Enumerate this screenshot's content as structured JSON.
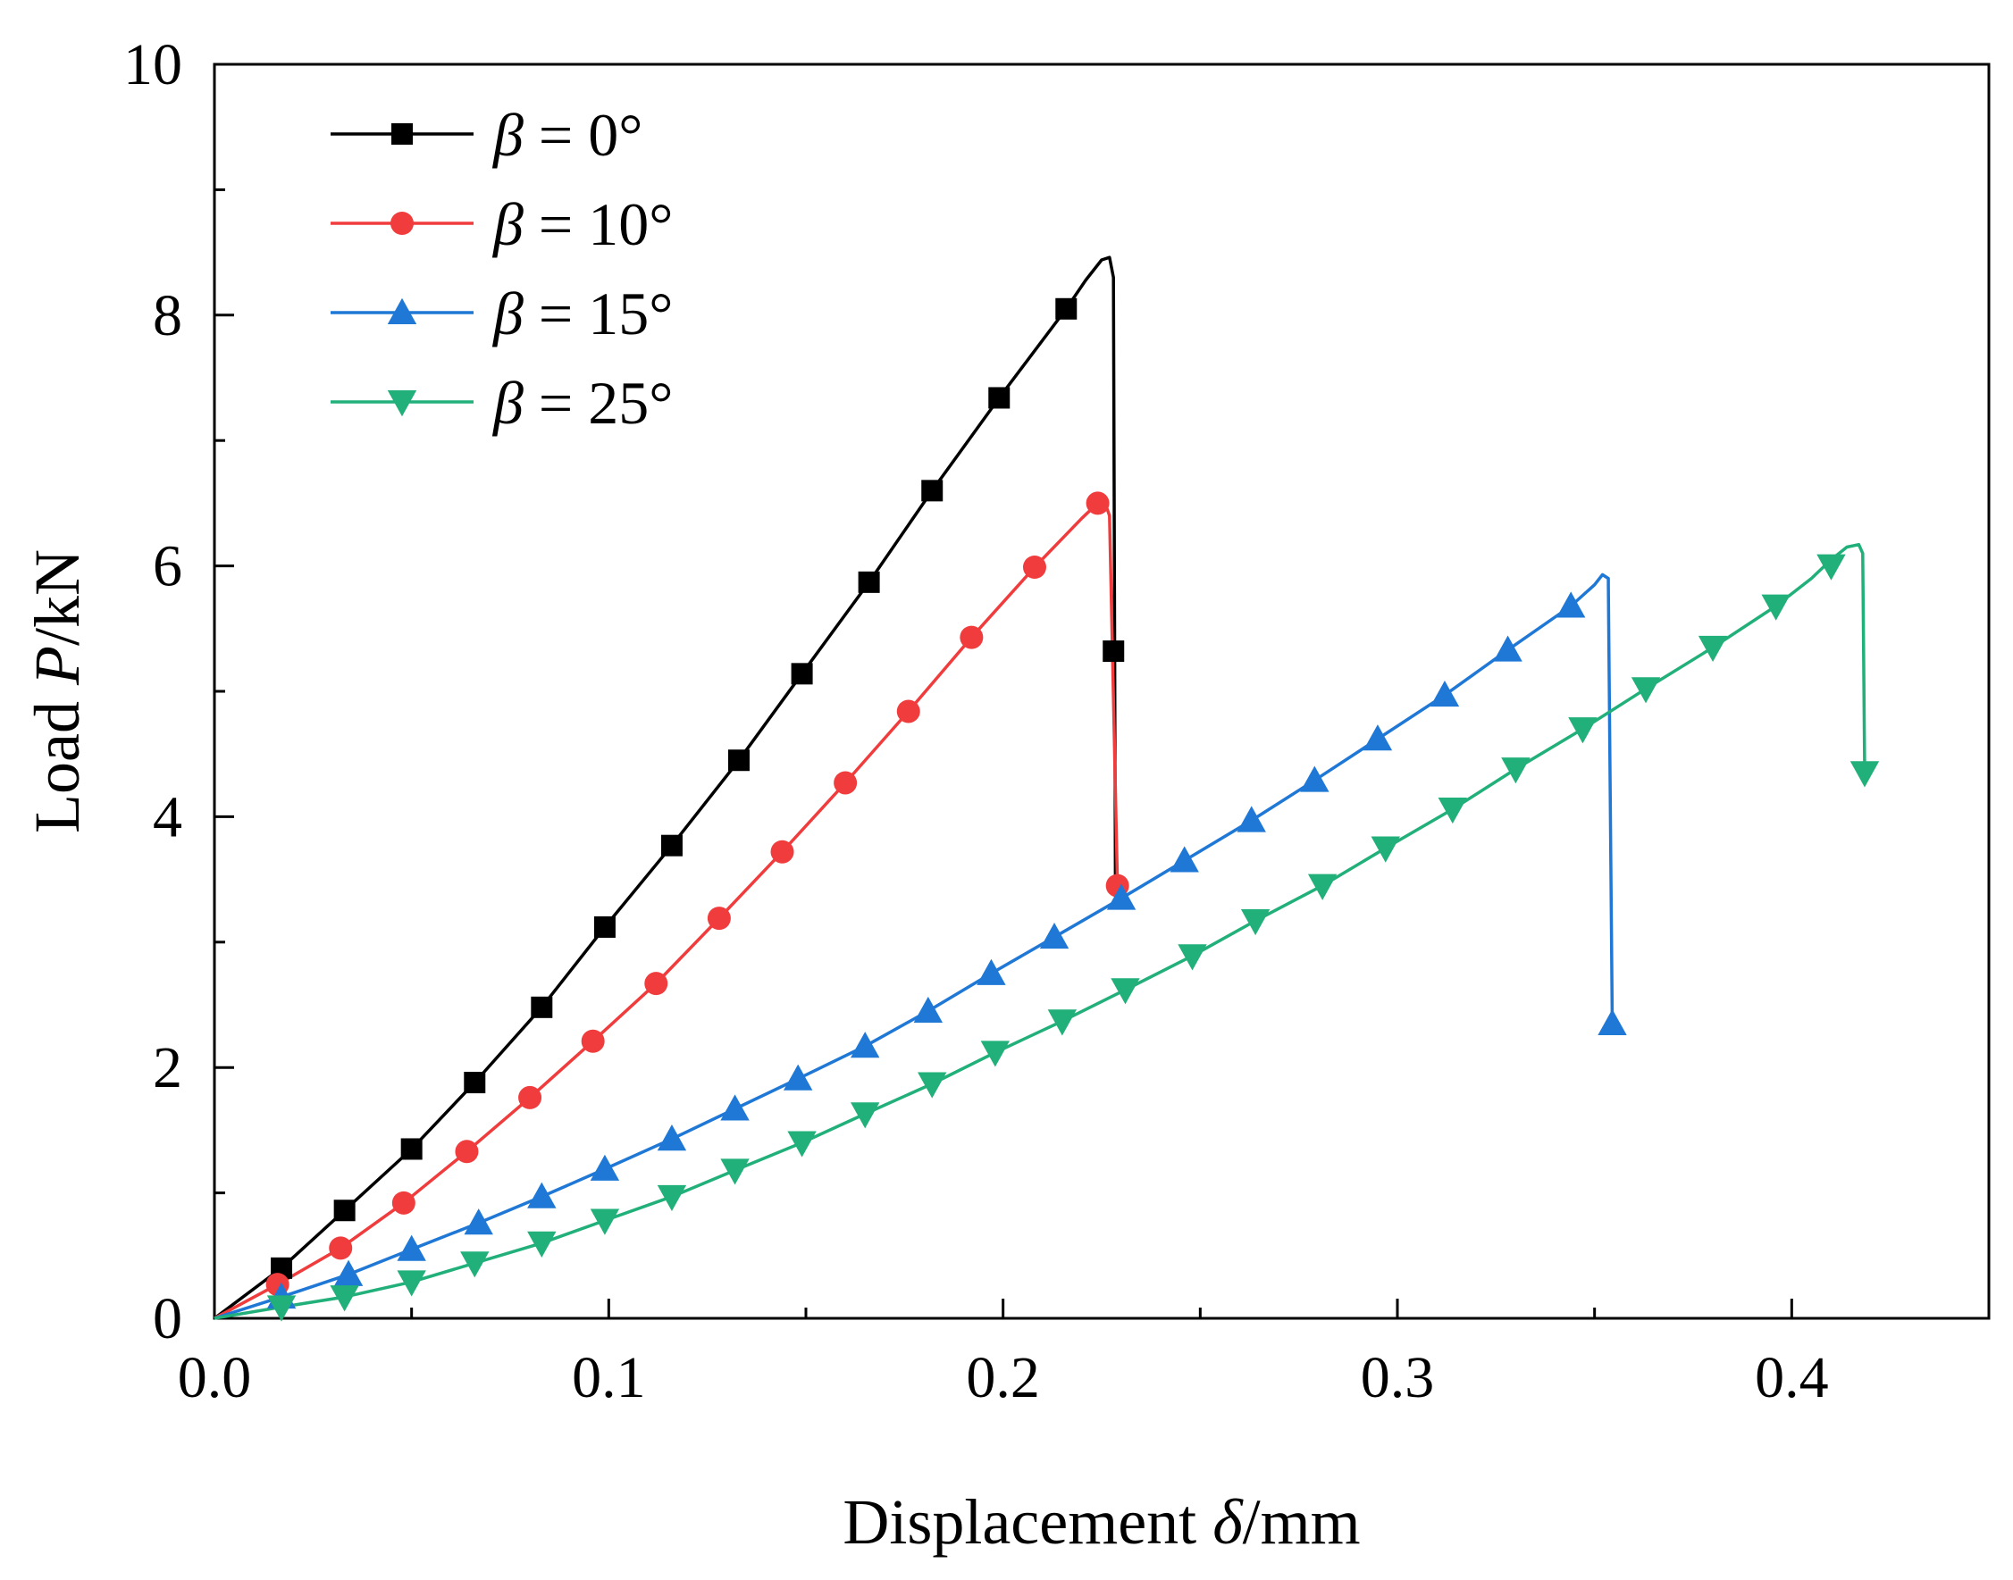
{
  "chart_data": {
    "type": "line",
    "title": "",
    "xlabel": {
      "prefix": "Displacement ",
      "symbol": "δ",
      "suffix": "/mm"
    },
    "ylabel": {
      "prefix": "Load ",
      "symbol": "P",
      "suffix": "/kN"
    },
    "xlim": [
      0,
      0.45
    ],
    "ylim": [
      0,
      10
    ],
    "xticks": [
      0.0,
      0.1,
      0.2,
      0.3,
      0.4
    ],
    "xtick_labels": [
      "0.0",
      "0.1",
      "0.2",
      "0.3",
      "0.4"
    ],
    "yticks": [
      0,
      2,
      4,
      6,
      8,
      10
    ],
    "ytick_labels": [
      "0",
      "2",
      "4",
      "6",
      "8",
      "10"
    ],
    "grid": false,
    "legend_position": "top-left",
    "series": [
      {
        "name": "β = 0°",
        "symbol": "β",
        "rest": "= 0°",
        "color": "#000000",
        "marker": "square",
        "line": [
          [
            0,
            0
          ],
          [
            0.017,
            0.4
          ],
          [
            0.033,
            0.86
          ],
          [
            0.05,
            1.35
          ],
          [
            0.066,
            1.88
          ],
          [
            0.083,
            2.48
          ],
          [
            0.099,
            3.12
          ],
          [
            0.116,
            3.77
          ],
          [
            0.133,
            4.45
          ],
          [
            0.149,
            5.14
          ],
          [
            0.166,
            5.87
          ],
          [
            0.182,
            6.6
          ],
          [
            0.199,
            7.34
          ],
          [
            0.216,
            8.05
          ],
          [
            0.221,
            8.28
          ],
          [
            0.225,
            8.44
          ],
          [
            0.227,
            8.46
          ],
          [
            0.228,
            8.3
          ],
          [
            0.2285,
            3.5
          ],
          [
            0.228,
            3.4
          ]
        ],
        "markers": [
          [
            0.017,
            0.4
          ],
          [
            0.033,
            0.86
          ],
          [
            0.05,
            1.35
          ],
          [
            0.066,
            1.88
          ],
          [
            0.083,
            2.48
          ],
          [
            0.099,
            3.12
          ],
          [
            0.116,
            3.77
          ],
          [
            0.133,
            4.45
          ],
          [
            0.149,
            5.14
          ],
          [
            0.166,
            5.87
          ],
          [
            0.182,
            6.6
          ],
          [
            0.199,
            7.34
          ],
          [
            0.216,
            8.05
          ],
          [
            0.228,
            5.32
          ]
        ]
      },
      {
        "name": "β = 10°",
        "symbol": "β",
        "rest": "= 10°",
        "color": "#F03C3C",
        "marker": "circle",
        "line": [
          [
            0,
            0
          ],
          [
            0.016,
            0.27
          ],
          [
            0.032,
            0.56
          ],
          [
            0.048,
            0.92
          ],
          [
            0.064,
            1.33
          ],
          [
            0.08,
            1.76
          ],
          [
            0.096,
            2.21
          ],
          [
            0.112,
            2.67
          ],
          [
            0.128,
            3.19
          ],
          [
            0.144,
            3.72
          ],
          [
            0.16,
            4.27
          ],
          [
            0.176,
            4.84
          ],
          [
            0.192,
            5.43
          ],
          [
            0.208,
            5.99
          ],
          [
            0.22,
            6.38
          ],
          [
            0.224,
            6.5
          ],
          [
            0.226,
            6.49
          ],
          [
            0.227,
            6.4
          ],
          [
            0.229,
            3.45
          ]
        ],
        "markers": [
          [
            0.016,
            0.27
          ],
          [
            0.032,
            0.56
          ],
          [
            0.048,
            0.92
          ],
          [
            0.064,
            1.33
          ],
          [
            0.08,
            1.76
          ],
          [
            0.096,
            2.21
          ],
          [
            0.112,
            2.67
          ],
          [
            0.128,
            3.19
          ],
          [
            0.144,
            3.72
          ],
          [
            0.16,
            4.27
          ],
          [
            0.176,
            4.84
          ],
          [
            0.192,
            5.43
          ],
          [
            0.208,
            5.99
          ],
          [
            0.224,
            6.5
          ],
          [
            0.229,
            3.45
          ]
        ]
      },
      {
        "name": "β = 15°",
        "symbol": "β",
        "rest": "= 15°",
        "color": "#1F78D6",
        "marker": "triangle-up",
        "line": [
          [
            0,
            0
          ],
          [
            0.017,
            0.17
          ],
          [
            0.034,
            0.35
          ],
          [
            0.05,
            0.55
          ],
          [
            0.067,
            0.76
          ],
          [
            0.083,
            0.97
          ],
          [
            0.099,
            1.19
          ],
          [
            0.116,
            1.43
          ],
          [
            0.132,
            1.67
          ],
          [
            0.148,
            1.91
          ],
          [
            0.165,
            2.17
          ],
          [
            0.181,
            2.45
          ],
          [
            0.197,
            2.75
          ],
          [
            0.213,
            3.04
          ],
          [
            0.23,
            3.35
          ],
          [
            0.246,
            3.65
          ],
          [
            0.263,
            3.97
          ],
          [
            0.279,
            4.29
          ],
          [
            0.295,
            4.62
          ],
          [
            0.312,
            4.97
          ],
          [
            0.328,
            5.33
          ],
          [
            0.344,
            5.68
          ],
          [
            0.35,
            5.85
          ],
          [
            0.352,
            5.93
          ],
          [
            0.3535,
            5.9
          ],
          [
            0.3535,
            5.85
          ],
          [
            0.3545,
            2.35
          ]
        ],
        "markers": [
          [
            0.017,
            0.17
          ],
          [
            0.034,
            0.35
          ],
          [
            0.05,
            0.55
          ],
          [
            0.067,
            0.76
          ],
          [
            0.083,
            0.97
          ],
          [
            0.099,
            1.19
          ],
          [
            0.116,
            1.43
          ],
          [
            0.132,
            1.67
          ],
          [
            0.148,
            1.91
          ],
          [
            0.165,
            2.17
          ],
          [
            0.181,
            2.45
          ],
          [
            0.197,
            2.75
          ],
          [
            0.213,
            3.04
          ],
          [
            0.23,
            3.35
          ],
          [
            0.246,
            3.65
          ],
          [
            0.263,
            3.97
          ],
          [
            0.279,
            4.29
          ],
          [
            0.295,
            4.62
          ],
          [
            0.312,
            4.97
          ],
          [
            0.328,
            5.33
          ],
          [
            0.344,
            5.68
          ],
          [
            0.3545,
            2.35
          ]
        ]
      },
      {
        "name": "β = 25°",
        "symbol": "β",
        "rest": "= 25°",
        "color": "#22B07A",
        "marker": "triangle-down",
        "line": [
          [
            0,
            0
          ],
          [
            0.017,
            0.09
          ],
          [
            0.033,
            0.17
          ],
          [
            0.05,
            0.29
          ],
          [
            0.066,
            0.44
          ],
          [
            0.083,
            0.6
          ],
          [
            0.099,
            0.78
          ],
          [
            0.116,
            0.97
          ],
          [
            0.132,
            1.18
          ],
          [
            0.149,
            1.4
          ],
          [
            0.165,
            1.63
          ],
          [
            0.182,
            1.87
          ],
          [
            0.198,
            2.12
          ],
          [
            0.215,
            2.37
          ],
          [
            0.231,
            2.62
          ],
          [
            0.248,
            2.89
          ],
          [
            0.264,
            3.17
          ],
          [
            0.281,
            3.45
          ],
          [
            0.297,
            3.75
          ],
          [
            0.314,
            4.06
          ],
          [
            0.33,
            4.38
          ],
          [
            0.347,
            4.7
          ],
          [
            0.363,
            5.02
          ],
          [
            0.38,
            5.35
          ],
          [
            0.396,
            5.68
          ],
          [
            0.405,
            5.9
          ],
          [
            0.41,
            6.05
          ],
          [
            0.414,
            6.15
          ],
          [
            0.417,
            6.17
          ],
          [
            0.418,
            6.1
          ],
          [
            0.4185,
            4.35
          ]
        ],
        "markers": [
          [
            0.017,
            0.09
          ],
          [
            0.033,
            0.17
          ],
          [
            0.05,
            0.29
          ],
          [
            0.066,
            0.44
          ],
          [
            0.083,
            0.6
          ],
          [
            0.099,
            0.78
          ],
          [
            0.116,
            0.97
          ],
          [
            0.132,
            1.18
          ],
          [
            0.149,
            1.4
          ],
          [
            0.165,
            1.63
          ],
          [
            0.182,
            1.87
          ],
          [
            0.198,
            2.12
          ],
          [
            0.215,
            2.37
          ],
          [
            0.231,
            2.62
          ],
          [
            0.248,
            2.89
          ],
          [
            0.264,
            3.17
          ],
          [
            0.281,
            3.45
          ],
          [
            0.297,
            3.75
          ],
          [
            0.314,
            4.06
          ],
          [
            0.33,
            4.38
          ],
          [
            0.347,
            4.7
          ],
          [
            0.363,
            5.02
          ],
          [
            0.38,
            5.35
          ],
          [
            0.396,
            5.68
          ],
          [
            0.41,
            6.0
          ],
          [
            0.4185,
            4.35
          ]
        ]
      }
    ]
  }
}
